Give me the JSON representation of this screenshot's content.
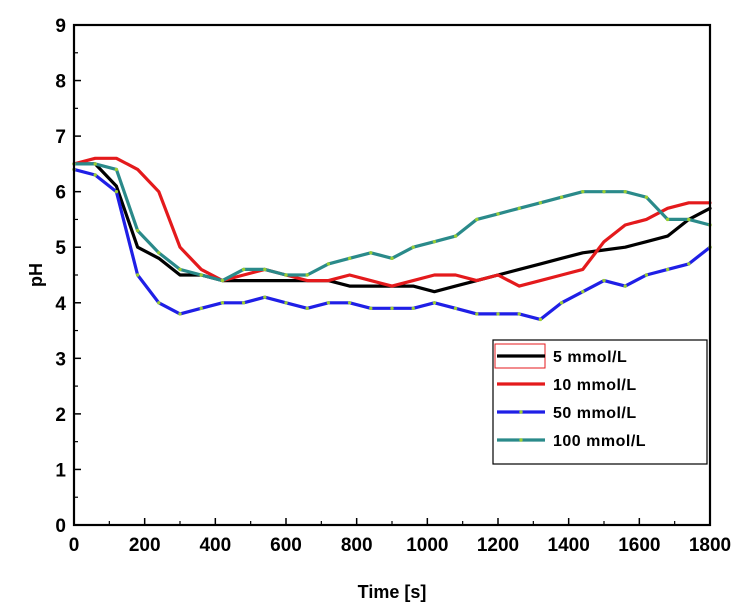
{
  "chart_data": {
    "type": "line",
    "title": "",
    "xlabel": "Time [s]",
    "ylabel": "pH",
    "xlim": [
      0,
      1800
    ],
    "ylim": [
      0,
      9
    ],
    "xticks": [
      "0",
      "200",
      "400",
      "600",
      "800",
      "1000",
      "1200",
      "1400",
      "1600",
      "1800"
    ],
    "yticks": [
      "0",
      "1",
      "2",
      "3",
      "4",
      "5",
      "6",
      "7",
      "8",
      "9"
    ],
    "grid": false,
    "legend_position": "lower-right",
    "series": [
      {
        "name": "5 mmol/L",
        "color": "#000000",
        "marker": "none",
        "x": [
          0,
          60,
          120,
          180,
          240,
          300,
          360,
          420,
          480,
          540,
          600,
          660,
          720,
          780,
          840,
          900,
          960,
          1020,
          1080,
          1140,
          1200,
          1260,
          1320,
          1380,
          1440,
          1500,
          1560,
          1620,
          1680,
          1740,
          1800
        ],
        "y": [
          6.5,
          6.5,
          6.1,
          5.0,
          4.8,
          4.5,
          4.5,
          4.4,
          4.4,
          4.4,
          4.4,
          4.4,
          4.4,
          4.3,
          4.3,
          4.3,
          4.3,
          4.2,
          4.3,
          4.4,
          4.5,
          4.6,
          4.7,
          4.8,
          4.9,
          4.95,
          5.0,
          5.1,
          5.2,
          5.5,
          5.7
        ]
      },
      {
        "name": "10 mmol/L",
        "color": "#e41a1c",
        "marker": "none",
        "x": [
          0,
          60,
          120,
          180,
          240,
          300,
          360,
          420,
          480,
          540,
          600,
          660,
          720,
          780,
          840,
          900,
          960,
          1020,
          1080,
          1140,
          1200,
          1260,
          1320,
          1380,
          1440,
          1500,
          1560,
          1620,
          1680,
          1740,
          1800
        ],
        "y": [
          6.5,
          6.6,
          6.6,
          6.4,
          6.0,
          5.0,
          4.6,
          4.4,
          4.5,
          4.6,
          4.5,
          4.4,
          4.4,
          4.5,
          4.4,
          4.3,
          4.4,
          4.5,
          4.5,
          4.4,
          4.5,
          4.3,
          4.4,
          4.5,
          4.6,
          5.1,
          5.4,
          5.5,
          5.7,
          5.8,
          5.8
        ]
      },
      {
        "name": "50 mmol/L",
        "color": "#1f1fe6",
        "marker": "dot",
        "x": [
          0,
          60,
          120,
          180,
          240,
          300,
          360,
          420,
          480,
          540,
          600,
          660,
          720,
          780,
          840,
          900,
          960,
          1020,
          1080,
          1140,
          1200,
          1260,
          1320,
          1380,
          1440,
          1500,
          1560,
          1620,
          1680,
          1740,
          1800
        ],
        "y": [
          6.4,
          6.3,
          6.0,
          4.5,
          4.0,
          3.8,
          3.9,
          4.0,
          4.0,
          4.1,
          4.0,
          3.9,
          4.0,
          4.0,
          3.9,
          3.9,
          3.9,
          4.0,
          3.9,
          3.8,
          3.8,
          3.8,
          3.7,
          4.0,
          4.2,
          4.4,
          4.3,
          4.5,
          4.6,
          4.7,
          5.0
        ]
      },
      {
        "name": "100 mmol/L",
        "color": "#2a8a8a",
        "marker": "dot",
        "x": [
          0,
          60,
          120,
          180,
          240,
          300,
          360,
          420,
          480,
          540,
          600,
          660,
          720,
          780,
          840,
          900,
          960,
          1020,
          1080,
          1140,
          1200,
          1260,
          1320,
          1380,
          1440,
          1500,
          1560,
          1620,
          1680,
          1740,
          1800
        ],
        "y": [
          6.5,
          6.5,
          6.4,
          5.3,
          4.9,
          4.6,
          4.5,
          4.4,
          4.6,
          4.6,
          4.5,
          4.5,
          4.7,
          4.8,
          4.9,
          4.8,
          5.0,
          5.1,
          5.2,
          5.5,
          5.6,
          5.7,
          5.8,
          5.9,
          6.0,
          6.0,
          6.0,
          5.9,
          5.5,
          5.5,
          5.4
        ]
      }
    ]
  }
}
